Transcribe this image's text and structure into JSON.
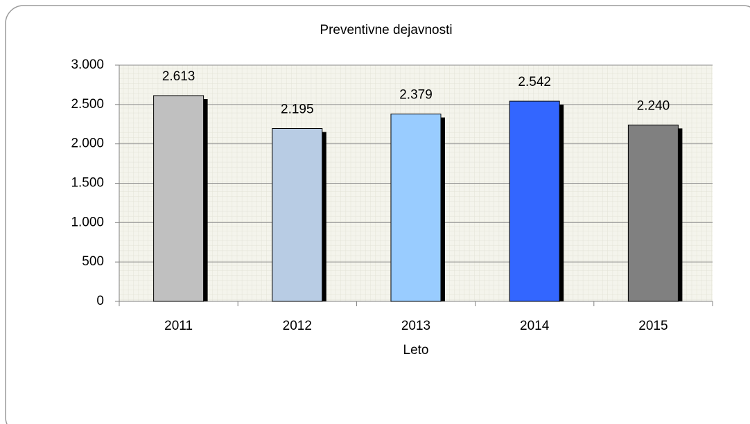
{
  "chart_data": {
    "type": "bar",
    "title": "Preventivne dejavnosti",
    "x_label": "Leto",
    "categories": [
      "2011",
      "2012",
      "2013",
      "2014",
      "2015"
    ],
    "values": [
      2613,
      2195,
      2379,
      2542,
      2240
    ],
    "value_labels": [
      "2.613",
      "2.195",
      "2.379",
      "2.542",
      "2.240"
    ],
    "colors": [
      "#c0c0c0",
      "#b8cce4",
      "#99ccff",
      "#3366ff",
      "#808080"
    ],
    "ylim": [
      0,
      3000
    ],
    "yticks": [
      0,
      500,
      {
        "value": 1000,
        "label": "1.000"
      },
      {
        "value": 1500,
        "label": "1.500"
      },
      {
        "value": 2000,
        "label": "2.000"
      },
      {
        "value": 2500,
        "label": "2.500"
      },
      {
        "value": 3000,
        "label": "3.000"
      }
    ],
    "grid": true
  }
}
